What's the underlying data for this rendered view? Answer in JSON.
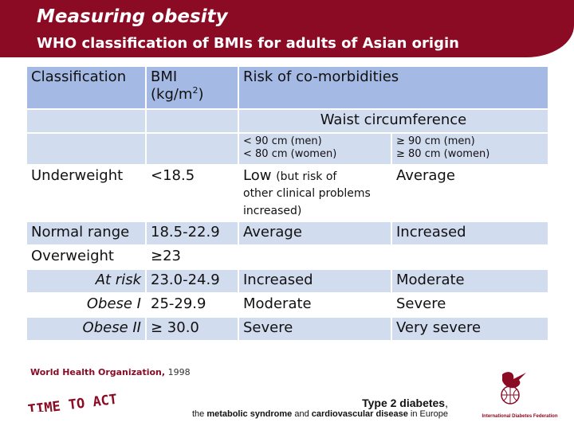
{
  "header": {
    "title": "Measuring obesity",
    "subtitle": "WHO classification of BMIs for adults of Asian origin"
  },
  "table": {
    "head": {
      "classification": "Classification",
      "bmi_line1": "BMI",
      "bmi_line2": "(kg/m",
      "bmi_sup": "2",
      "bmi_close": ")",
      "risk": "Risk of co-morbidities"
    },
    "waist": "Waist circumference",
    "waist_men": "< 90 cm (men)",
    "waist_women": "< 80 cm (women)",
    "waist_men_high": "≥ 90 cm (men)",
    "waist_women_high": "≥ 80 cm (women)",
    "rows": [
      {
        "class": "Underweight",
        "bmi": "<18.5",
        "risk_low_main": "Low",
        "risk_low_note": "(but risk of",
        "risk_low_note2": "other clinical problems increased)",
        "risk_high": "Average"
      },
      {
        "class": "Normal range",
        "bmi": "18.5-22.9",
        "risk_low": "Average",
        "risk_high": "Increased"
      },
      {
        "class": "Overweight",
        "bmi": "≥23",
        "risk_low": "",
        "risk_high": ""
      },
      {
        "class": "At risk",
        "bmi": "23.0-24.9",
        "risk_low": "Increased",
        "risk_high": "Moderate"
      },
      {
        "class": "Obese I",
        "bmi": "25-29.9",
        "risk_low": "Moderate",
        "risk_high": "Severe"
      },
      {
        "class": "Obese II",
        "bmi": "≥ 30.0",
        "risk_low": "Severe",
        "risk_high": "Very severe"
      }
    ]
  },
  "footer": {
    "source_org": "World Health Organization,",
    "source_year": "1998",
    "logo_left": "TIME TO ACT",
    "right_line1_bold": "Type 2 diabetes",
    "right_line1_rest": ",",
    "right_line2_pre": "the ",
    "right_line2_b1": "metabolic syndrome",
    "right_line2_mid": " and ",
    "right_line2_b2": "cardiovascular disease",
    "right_line2_post": " in Europe",
    "idf": "International Diabetes Federation"
  },
  "colors": {
    "brand": "#8b0a24",
    "header_cell": "#a4b9e3",
    "band": "#d2dcef"
  }
}
